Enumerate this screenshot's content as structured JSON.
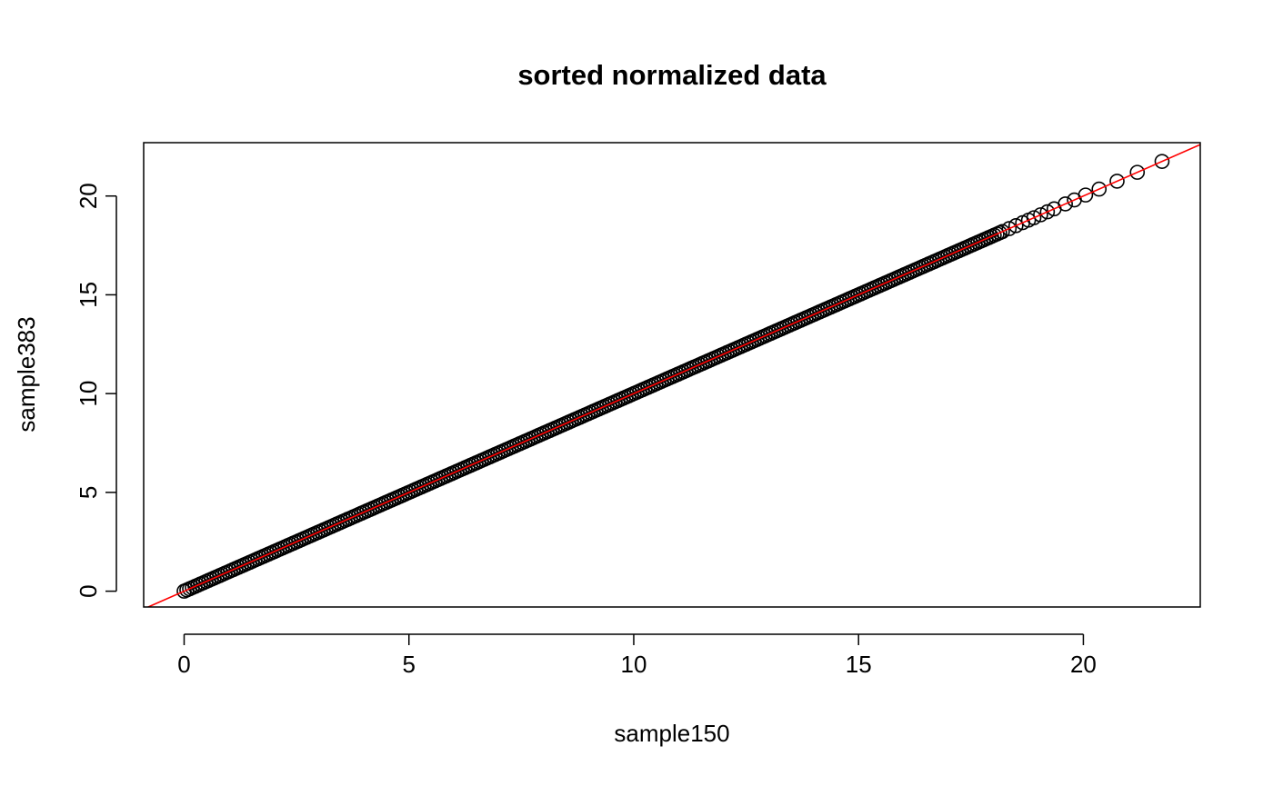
{
  "chart_data": {
    "type": "scatter",
    "title": "sorted normalized data",
    "xlabel": "sample150",
    "ylabel": "sample383",
    "xlim": [
      -0.9,
      22.6
    ],
    "ylim": [
      -0.8,
      22.7
    ],
    "x_ticks": [
      0,
      5,
      10,
      15,
      20
    ],
    "x_tick_labels": [
      "0",
      "5",
      "10",
      "15",
      "20"
    ],
    "y_ticks": [
      0,
      5,
      10,
      15,
      20
    ],
    "y_tick_labels": [
      "0",
      "5",
      "10",
      "15",
      "20"
    ],
    "grid": false,
    "marker": "open-circle",
    "points_color": "#000000",
    "reference_line": {
      "type": "identity",
      "slope": 1,
      "intercept": 0,
      "color": "#ff0000"
    },
    "dense_segment": {
      "from": 0,
      "to": 18.2,
      "point_count": 300
    },
    "sparse_points": [
      18.35,
      18.5,
      18.65,
      18.78,
      18.9,
      19.05,
      19.2,
      19.35,
      19.6,
      19.8,
      20.05,
      20.35,
      20.75,
      21.2,
      21.75
    ],
    "colors": {
      "background": "#ffffff",
      "axis": "#000000",
      "reference": "#ff0000"
    }
  }
}
